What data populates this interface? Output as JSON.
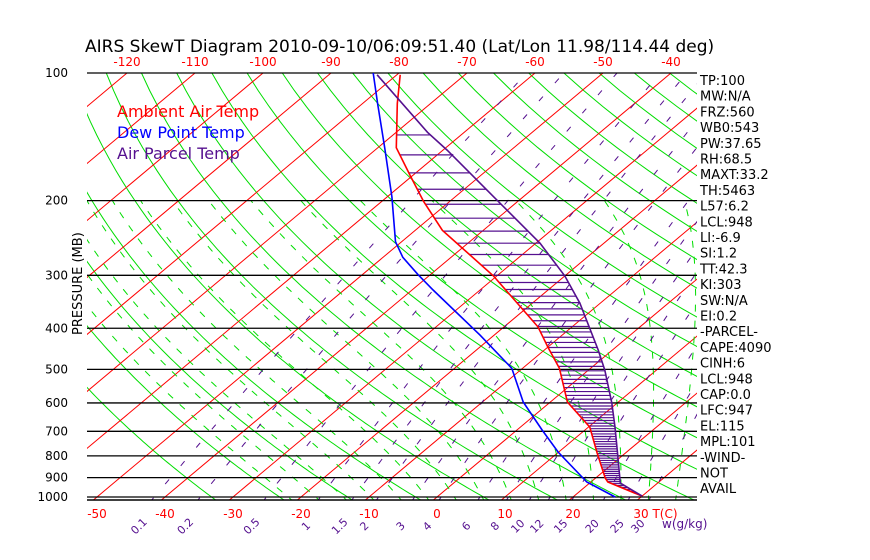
{
  "chart_data": {
    "type": "line",
    "subtype": "skew-t log-p",
    "title": "AIRS SkewT Diagram 2010-09-10/06:09:51.40 (Lat/Lon 11.98/114.44 deg)",
    "ylabel": "PRESSURE (MB)",
    "xlabel": "T(C)",
    "mixing_ratio_label": "w(g/kg)",
    "pressure_ticks": [
      100,
      200,
      300,
      400,
      500,
      600,
      700,
      800,
      900,
      1000
    ],
    "pressure_tick_labels": [
      "100",
      "200",
      "300",
      "400",
      "500",
      "600",
      "700",
      "800",
      "900",
      "1000"
    ],
    "top_temp_ticks": [
      -120,
      -110,
      -100,
      -90,
      -80,
      -70,
      -60,
      -50,
      -40
    ],
    "top_temp_labels": [
      "-120",
      "-110",
      "-100",
      "-90",
      "-80",
      "-70",
      "-60",
      "-50",
      "-40"
    ],
    "bottom_temp_ticks": [
      -50,
      -40,
      -30,
      -20,
      -10,
      0,
      10,
      20,
      30
    ],
    "bottom_temp_labels": [
      "-50",
      "-40",
      "-30",
      "-20",
      "-10",
      "0",
      "10",
      "20",
      "30"
    ],
    "mixing_ratio_values": [
      0.1,
      0.2,
      0.5,
      1,
      1.5,
      2,
      3,
      4,
      6,
      8,
      10,
      12,
      15,
      20,
      25,
      30
    ],
    "mixing_ratio_labels": [
      "0.1",
      "0.2",
      "0.5",
      "1",
      "1.5",
      "2",
      "3",
      "4",
      "6",
      "8",
      "10",
      "12",
      "15",
      "20",
      "25",
      "30"
    ],
    "ylim": [
      1023,
      100
    ],
    "legend": [
      {
        "name": "Ambient Air Temp",
        "color": "#ff0000"
      },
      {
        "name": "Dew Point Temp",
        "color": "#0000ff"
      },
      {
        "name": "Air Parcel Temp",
        "color": "#55108f"
      }
    ],
    "legend_position": "top-left",
    "series": [
      {
        "name": "Ambient Air Temp",
        "color": "#ff0000",
        "p": [
          101,
          118,
          150,
          174,
          201,
          235,
          301,
          397,
          443,
          497,
          597,
          684,
          787,
          902,
          922,
          995
        ],
        "T": [
          -79.5,
          -74.9,
          -67.3,
          -60.5,
          -53.8,
          -46,
          -30.5,
          -15,
          -10,
          -4.6,
          2.5,
          10.2,
          15.8,
          21.4,
          22.5,
          30
        ]
      },
      {
        "name": "Dew Point Temp",
        "color": "#0000ff",
        "p": [
          100,
          118,
          150,
          196,
          250,
          272,
          299,
          325,
          415,
          497,
          597,
          695,
          783,
          922,
          1000
        ],
        "T": [
          -83.8,
          -77.8,
          -69,
          -59.3,
          -50.9,
          -47.1,
          -41.8,
          -36.9,
          -22.1,
          -11.6,
          -4,
          3.7,
          9.9,
          19.4,
          26.2
        ]
      },
      {
        "name": "Air Parcel Temp",
        "color": "#55108f",
        "p": [
          101,
          138,
          152,
          197,
          252,
          301,
          349,
          450,
          502,
          600,
          684,
          787,
          927,
          995
        ],
        "T": [
          -82.9,
          -65.4,
          -59.4,
          -44,
          -29.4,
          -20,
          -13,
          -2.1,
          2.4,
          9.2,
          13.9,
          18.8,
          24.5,
          30
        ]
      }
    ],
    "colors": {
      "isotherm": "#ff0000",
      "dry_adiabat": "#00dd00",
      "moist_adiabat": "#00dd00",
      "mixing_ratio": "#55108f",
      "isobar": "#000000"
    }
  },
  "stats": [
    "TP:100",
    "MW:N/A",
    "FRZ:560",
    "WB0:543",
    "PW:37.65",
    "RH:68.5",
    "MAXT:33.2",
    "TH:5463",
    "L57:6.2",
    "LCL:948",
    "LI:-6.9",
    "SI:1.2",
    "TT:42.3",
    "KI:303",
    "SW:N/A",
    "EI:0.2",
    "-PARCEL-",
    "CAPE:4090",
    "CINH:6",
    "LCL:948",
    "CAP:0.0",
    "LFC:947",
    "EL:115",
    "MPL:101",
    "-WIND-",
    "NOT",
    "AVAIL"
  ]
}
